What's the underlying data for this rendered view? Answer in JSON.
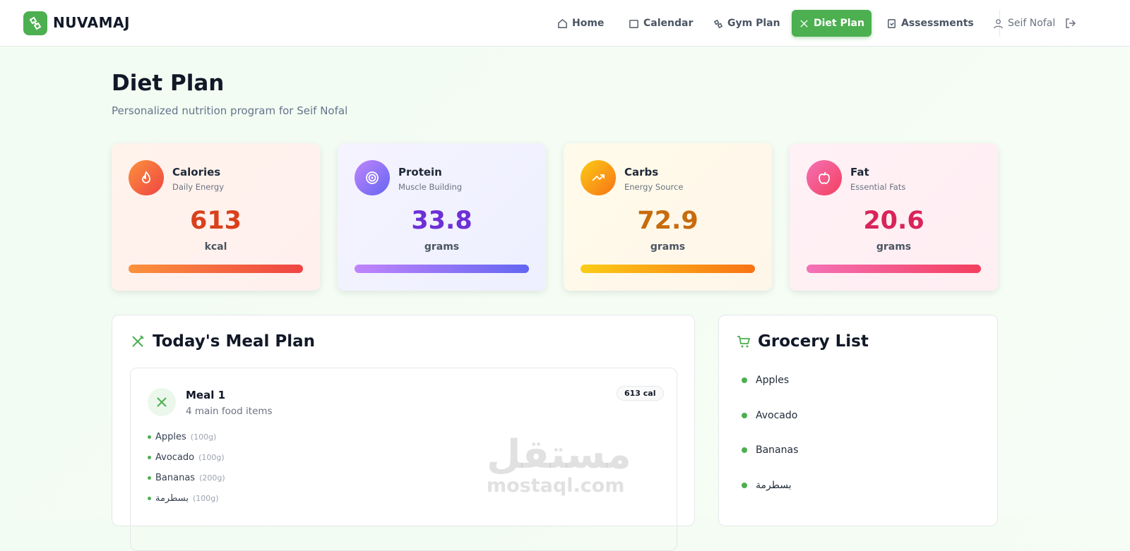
{
  "nav": {
    "brand": "NUVAMAJ",
    "links": [
      "Home",
      "Calendar",
      "Gym Plan",
      "Diet Plan",
      "Assessments"
    ],
    "user": "Seif Nofal"
  },
  "header": {
    "title": "Diet Plan",
    "subtitle": "Personalized nutrition program for Seif Nofal"
  },
  "stats": [
    {
      "label": "Calories",
      "sub": "Daily Energy",
      "value": 613,
      "unit": "kcal"
    },
    {
      "label": "Protein",
      "sub": "Muscle Building",
      "value": 33.8,
      "unit": "grams"
    },
    {
      "label": "Carbs",
      "sub": "Energy Source",
      "value": 72.9,
      "unit": "grams"
    },
    {
      "label": "Fat",
      "sub": "Essential Fats",
      "value": 20.6,
      "unit": "grams"
    }
  ],
  "meal_plan": {
    "title": "Today's Meal Plan",
    "meals": [
      {
        "name": "Meal 1",
        "summary": "4 main food items",
        "calories": "613 cal",
        "items": [
          {
            "name": "Apples",
            "amount": "(100g)"
          },
          {
            "name": "Avocado",
            "amount": "(100g)"
          },
          {
            "name": "Bananas",
            "amount": "(200g)"
          },
          {
            "name": "بسطرمة",
            "amount": "(100g)"
          }
        ]
      }
    ]
  },
  "grocery": {
    "title": "Grocery List",
    "items": [
      "Apples",
      "Avocado",
      "Bananas",
      "بسطرمة"
    ]
  },
  "watermark": {
    "arabic": "مستقل",
    "latin": "mostaql.com"
  }
}
